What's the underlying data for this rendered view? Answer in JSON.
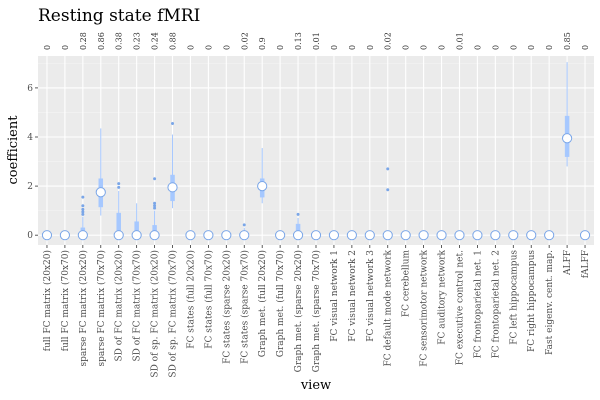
{
  "chart_data": {
    "type": "boxplot",
    "title": "Resting state fMRI",
    "xlabel": "view",
    "ylabel": "coefficient",
    "ylim": [
      -0.4,
      7.3
    ],
    "yticks": [
      0,
      2,
      4,
      6
    ],
    "grid": true,
    "colors": {
      "panel": "#ebebeb",
      "grid_major": "#ffffff",
      "box": "#a6c8ff",
      "point_fill": "#ffffff",
      "point_stroke": "#7aa6e8"
    },
    "categories": [
      "full FC matrix (20x20)",
      "full FC matrix (70x70)",
      "sparse FC matrix (20x20)",
      "sparse FC matrix (70x70)",
      "SD of FC matrix (20x20)",
      "SD of FC matrix (70x70)",
      "SD of sp. FC matrix (20x20)",
      "SD of sp. FC matrix (70x70)",
      "FC states (full 20x20)",
      "FC states (full 70x70)",
      "FC states (sparse 20x20)",
      "FC states (sparse 70x70)",
      "Graph met. (full 20x20)",
      "Graph met. (full 70x70)",
      "Graph met. (sparse 20x20)",
      "Graph met. (sparse 70x70)",
      "FC visual network 1",
      "FC visual network 2",
      "FC visual network 3",
      "FC default mode network",
      "FC cerebellum",
      "FC sensorimotor network",
      "FC auditory network",
      "FC executive control net.",
      "FC frontoparietal net. 1",
      "FC frontoparietal net. 2",
      "FC left hippocampus",
      "FC right hippocampus",
      "Fast eigenv. cent. map.",
      "ALFF",
      "fALFF"
    ],
    "selection_frequency": [
      "0",
      "0",
      "0.28",
      "0.86",
      "0.38",
      "0.23",
      "0.24",
      "0.88",
      "0",
      "0",
      "0",
      "0.02",
      "0.9",
      "0",
      "0.13",
      "0.01",
      "0",
      "0",
      "0",
      "0.02",
      "0",
      "0",
      "0",
      "0.01",
      "0",
      "0",
      "0",
      "0",
      "0",
      "0.85",
      "0"
    ],
    "means": [
      0,
      0,
      0,
      1.75,
      0,
      0,
      0,
      1.95,
      0,
      0,
      0,
      0,
      2.0,
      0,
      0,
      0,
      0,
      0,
      0,
      0,
      0,
      0,
      0,
      0,
      0,
      0,
      0,
      0,
      0,
      3.95,
      0
    ],
    "boxes": [
      null,
      null,
      {
        "q1": 0,
        "q3": 0.3,
        "whisker": [
          0,
          0.75
        ],
        "outliers": [
          0.85,
          0.95,
          1.05,
          1.2,
          1.55
        ]
      },
      {
        "q1": 1.15,
        "q3": 2.3,
        "whisker": [
          0.8,
          4.35
        ],
        "outliers": []
      },
      {
        "q1": 0,
        "q3": 0.9,
        "whisker": [
          0,
          1.8
        ],
        "outliers": [
          1.95,
          2.1
        ]
      },
      {
        "q1": 0,
        "q3": 0.55,
        "whisker": [
          0,
          1.3
        ],
        "outliers": []
      },
      {
        "q1": 0,
        "q3": 0.4,
        "whisker": [
          0,
          1.0
        ],
        "outliers": [
          1.1,
          1.2,
          1.3,
          2.3
        ]
      },
      {
        "q1": 1.4,
        "q3": 2.45,
        "whisker": [
          1.1,
          4.1
        ],
        "outliers": [
          4.55
        ]
      },
      null,
      null,
      null,
      {
        "q1": 0,
        "q3": 0.05,
        "whisker": [
          0,
          0.3
        ],
        "outliers": [
          0.42
        ]
      },
      {
        "q1": 1.55,
        "q3": 2.3,
        "whisker": [
          1.3,
          3.55
        ],
        "outliers": []
      },
      null,
      {
        "q1": 0,
        "q3": 0.45,
        "whisker": [
          0,
          0.7
        ],
        "outliers": [
          0.85
        ]
      },
      null,
      null,
      null,
      null,
      {
        "q1": 0,
        "q3": 0,
        "whisker": [
          0,
          0
        ],
        "outliers": [
          1.85,
          2.7
        ]
      },
      null,
      null,
      null,
      null,
      null,
      null,
      null,
      null,
      null,
      {
        "q1": 3.2,
        "q3": 4.85,
        "whisker": [
          2.8,
          7.05
        ],
        "outliers": []
      },
      null
    ]
  }
}
